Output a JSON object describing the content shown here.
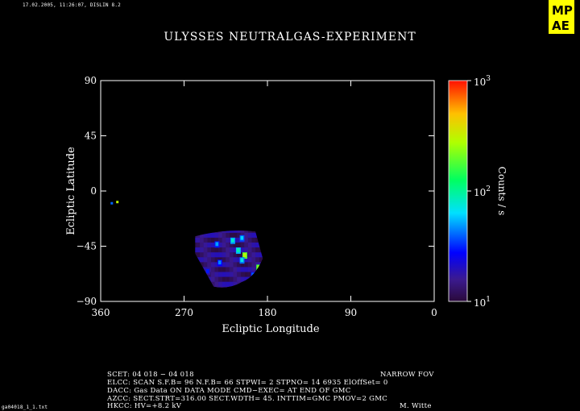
{
  "header": {
    "timestamp": "17.02.2005, 11:26:07, DISLIN 8.2",
    "title": "ULYSSES NEUTRALGAS-EXPERIMENT"
  },
  "logo": {
    "text_line1": "MP",
    "text_line2": "AE",
    "color": "#ffff00"
  },
  "chart_data": {
    "type": "heatmap",
    "xlabel": "Ecliptic Longitude",
    "ylabel": "Ecliptic Latitude",
    "xlim": [
      360,
      0
    ],
    "ylim": [
      -90,
      90
    ],
    "xticks": [
      "360",
      "270",
      "180",
      "90",
      "0"
    ],
    "yticks": [
      "90",
      "45",
      "0",
      "−45",
      "−90"
    ],
    "colorbar": {
      "label": "Counts / s",
      "scale": "log",
      "range": [
        10,
        1000
      ],
      "ticks": [
        {
          "base": "10",
          "exp": "1",
          "value": 10
        },
        {
          "base": "10",
          "exp": "2",
          "value": 100
        },
        {
          "base": "10",
          "exp": "3",
          "value": 1000
        }
      ]
    },
    "points": [
      {
        "lon": 348,
        "lat": -10,
        "counts": 40
      },
      {
        "lon": 342,
        "lat": -9,
        "counts": 300
      }
    ],
    "region": {
      "lon_range": [
        185,
        258
      ],
      "lat_range": [
        -78,
        -33
      ],
      "background_counts": 15,
      "hotspots": [
        {
          "lon": 208,
          "lat": -38,
          "counts": 60
        },
        {
          "lon": 218,
          "lat": -40,
          "counts": 80
        },
        {
          "lon": 235,
          "lat": -43,
          "counts": 50
        },
        {
          "lon": 212,
          "lat": -48,
          "counts": 90
        },
        {
          "lon": 205,
          "lat": -52,
          "counts": 300
        },
        {
          "lon": 208,
          "lat": -56,
          "counts": 70
        },
        {
          "lon": 232,
          "lat": -58,
          "counts": 45
        },
        {
          "lon": 190,
          "lat": -62,
          "counts": 250
        },
        {
          "lon": 196,
          "lat": -68,
          "counts": 40
        },
        {
          "lon": 245,
          "lat": -65,
          "counts": 30
        }
      ]
    }
  },
  "info": {
    "scet": "SCET: 04 018 − 04 018",
    "fov": "NARROW FOV",
    "elcc": "ELCC: SCAN  S.F.B= 96 N.F.B= 66 STPWI=  2  STPNO= 14   6935   ElOffSet= 0",
    "dacc": "DACC: Gas Data ON    DATA MODE CMD−EXEC= AT END OF GMC",
    "azcc": "AZCC: SECT.STRT=316.00 SECT.WDTH= 45. INTTIM=GMC PMOV=2 GMC",
    "hkcc": "HKCC: HV=+8.2 kV",
    "author": "M. Witte",
    "filename": "ga04018_1_1.txt"
  }
}
